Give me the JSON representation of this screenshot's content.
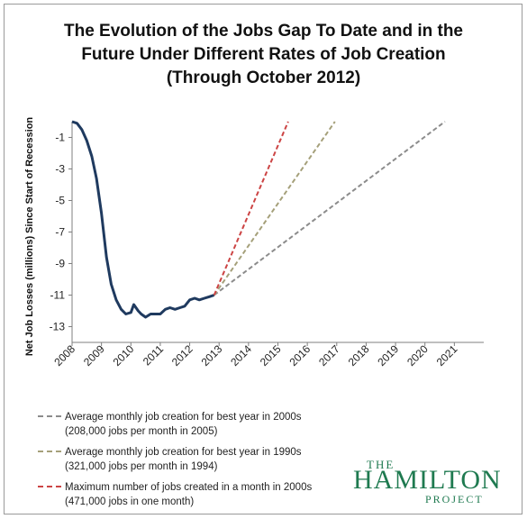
{
  "chart_data": {
    "type": "line",
    "title_lines": [
      "The Evolution of the Jobs Gap To Date and in the",
      "Future Under Different Rates of Job Creation",
      "(Through October 2012)"
    ],
    "ylabel": "Net Job Losses (millions) Since Start of Recession",
    "xlabel": "",
    "x_ticks": [
      "2008",
      "2009",
      "2010",
      "2011",
      "2012",
      "2013",
      "2014",
      "2015",
      "2016",
      "2017",
      "2018",
      "2019",
      "2020",
      "2021"
    ],
    "y_ticks": [
      -1,
      -3,
      -5,
      -7,
      -9,
      -11,
      -13
    ],
    "xlim": [
      2008,
      2022
    ],
    "ylim": [
      -14,
      0
    ],
    "grid": false,
    "legend_position": "bottom-left",
    "series": [
      {
        "name": "",
        "color": "#1f3a5f",
        "style": "solid",
        "x": [
          2008.0,
          2008.17,
          2008.33,
          2008.5,
          2008.67,
          2008.83,
          2009.0,
          2009.17,
          2009.33,
          2009.5,
          2009.67,
          2009.83,
          2010.0,
          2010.1,
          2010.25,
          2010.35,
          2010.5,
          2010.67,
          2010.83,
          2011.0,
          2011.17,
          2011.33,
          2011.5,
          2011.67,
          2011.83,
          2012.0,
          2012.17,
          2012.33,
          2012.5,
          2012.67,
          2012.83
        ],
        "y": [
          0.0,
          -0.1,
          -0.5,
          -1.2,
          -2.2,
          -3.6,
          -5.8,
          -8.6,
          -10.3,
          -11.3,
          -11.9,
          -12.2,
          -12.1,
          -11.6,
          -12.0,
          -12.2,
          -12.4,
          -12.2,
          -12.2,
          -12.2,
          -11.9,
          -11.8,
          -11.9,
          -11.8,
          -11.7,
          -11.3,
          -11.2,
          -11.3,
          -11.2,
          -11.1,
          -11.0
        ]
      },
      {
        "name": "Average monthly job creation for best year in 2000s (208,000 jobs per month in 2005)",
        "color": "#8c8c8c",
        "style": "dashed",
        "x": [
          2012.83,
          2020.68
        ],
        "y": [
          -11.0,
          0.0
        ]
      },
      {
        "name": "Average monthly job creation for best year in 1990s (321,000 jobs per month in 1994)",
        "color": "#a5a07a",
        "style": "dashed",
        "x": [
          2012.83,
          2016.94
        ],
        "y": [
          -11.0,
          0.0
        ]
      },
      {
        "name": "Maximum number of jobs created in a month in 2000s (471,000 jobs in one month)",
        "color": "#cc4444",
        "style": "dashed",
        "x": [
          2012.83,
          2015.35
        ],
        "y": [
          -11.0,
          0.0
        ]
      }
    ]
  },
  "legend": [
    {
      "line1": "Average monthly job creation for best year in 2000s",
      "line2": "(208,000 jobs per month in 2005)",
      "color": "#8c8c8c"
    },
    {
      "line1": "Average monthly job creation for best year in 1990s",
      "line2": "(321,000 jobs per month in 1994)",
      "color": "#a5a07a"
    },
    {
      "line1": "Maximum number of jobs created in a month in 2000s",
      "line2": "(471,000 jobs in one month)",
      "color": "#cc4444"
    }
  ],
  "logo": {
    "top": "THE",
    "main": "HAMILTON",
    "bottom": "PROJECT"
  }
}
